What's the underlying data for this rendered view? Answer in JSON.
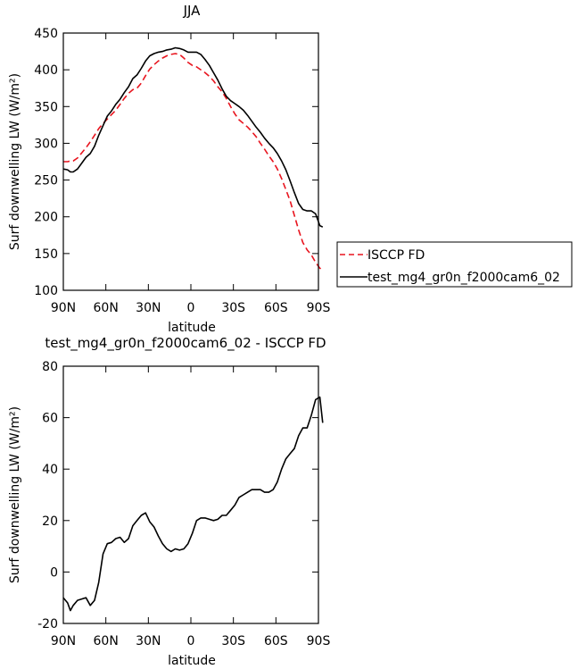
{
  "chart_data": [
    {
      "type": "line",
      "title": "JJA",
      "xlabel": "latitude",
      "ylabel": "Surf downwelling LW (W/m²)",
      "xlim": [
        -90,
        90
      ],
      "ylim": [
        100,
        450
      ],
      "x_tick_values": [
        -90,
        -60,
        -30,
        0,
        30,
        60,
        90
      ],
      "x_tick_labels": [
        "90N",
        "60N",
        "30N",
        "0",
        "30S",
        "60S",
        "90S"
      ],
      "y_ticks": [
        100,
        150,
        200,
        250,
        300,
        350,
        400,
        450
      ],
      "legend": {
        "placement": "right",
        "entries": [
          "ISCCP FD",
          "test_mg4_gr0n_f2000cam6_02"
        ]
      },
      "series": [
        {
          "name": "ISCCP FD",
          "color": "#e8141e",
          "dash": "dashed",
          "points": [
            [
              -90,
              275
            ],
            [
              -87,
              275
            ],
            [
              -85,
              276
            ],
            [
              -83,
              276
            ],
            [
              -80,
              280
            ],
            [
              -77,
              287
            ],
            [
              -74,
              294
            ],
            [
              -71,
              302
            ],
            [
              -68,
              311
            ],
            [
              -65,
              320
            ],
            [
              -62,
              327
            ],
            [
              -59,
              333
            ],
            [
              -56,
              339
            ],
            [
              -53,
              345
            ],
            [
              -50,
              353
            ],
            [
              -47,
              361
            ],
            [
              -44,
              368
            ],
            [
              -41,
              373
            ],
            [
              -38,
              375
            ],
            [
              -35,
              382
            ],
            [
              -32,
              392
            ],
            [
              -29,
              401
            ],
            [
              -26,
              407
            ],
            [
              -23,
              412
            ],
            [
              -20,
              416
            ],
            [
              -17,
              419
            ],
            [
              -14,
              421
            ],
            [
              -11,
              422
            ],
            [
              -8,
              421
            ],
            [
              -5,
              416
            ],
            [
              -2,
              410
            ],
            [
              1,
              406
            ],
            [
              4,
              404
            ],
            [
              7,
              400
            ],
            [
              10,
              396
            ],
            [
              13,
              391
            ],
            [
              16,
              385
            ],
            [
              19,
              377
            ],
            [
              22,
              370
            ],
            [
              25,
              361
            ],
            [
              28,
              350
            ],
            [
              31,
              340
            ],
            [
              34,
              332
            ],
            [
              37,
              327
            ],
            [
              40,
              322
            ],
            [
              43,
              316
            ],
            [
              46,
              309
            ],
            [
              49,
              300
            ],
            [
              52,
              292
            ],
            [
              55,
              283
            ],
            [
              58,
              275
            ],
            [
              61,
              265
            ],
            [
              64,
              252
            ],
            [
              67,
              237
            ],
            [
              70,
              222
            ],
            [
              73,
              202
            ],
            [
              76,
              182
            ],
            [
              79,
              165
            ],
            [
              82,
              155
            ],
            [
              85,
              148
            ],
            [
              88,
              138
            ],
            [
              91,
              130
            ],
            [
              93,
              128
            ]
          ]
        },
        {
          "name": "test_mg4_gr0n_f2000cam6_02",
          "color": "#000000",
          "dash": "solid",
          "points": [
            [
              -90,
              265
            ],
            [
              -87,
              264
            ],
            [
              -85,
              261
            ],
            [
              -83,
              261
            ],
            [
              -80,
              265
            ],
            [
              -77,
              273
            ],
            [
              -74,
              281
            ],
            [
              -71,
              286
            ],
            [
              -68,
              296
            ],
            [
              -65,
              311
            ],
            [
              -62,
              324
            ],
            [
              -59,
              337
            ],
            [
              -56,
              344
            ],
            [
              -53,
              353
            ],
            [
              -50,
              360
            ],
            [
              -47,
              369
            ],
            [
              -44,
              377
            ],
            [
              -41,
              388
            ],
            [
              -38,
              393
            ],
            [
              -35,
              402
            ],
            [
              -32,
              412
            ],
            [
              -29,
              419
            ],
            [
              -26,
              422
            ],
            [
              -23,
              424
            ],
            [
              -20,
              425
            ],
            [
              -17,
              427
            ],
            [
              -14,
              428
            ],
            [
              -11,
              430
            ],
            [
              -8,
              429
            ],
            [
              -5,
              427
            ],
            [
              -2,
              424
            ],
            [
              1,
              424
            ],
            [
              4,
              424
            ],
            [
              7,
              421
            ],
            [
              10,
              414
            ],
            [
              13,
              406
            ],
            [
              16,
              396
            ],
            [
              19,
              386
            ],
            [
              22,
              374
            ],
            [
              25,
              364
            ],
            [
              28,
              358
            ],
            [
              31,
              354
            ],
            [
              34,
              350
            ],
            [
              37,
              345
            ],
            [
              40,
              338
            ],
            [
              43,
              330
            ],
            [
              46,
              322
            ],
            [
              49,
              315
            ],
            [
              52,
              307
            ],
            [
              55,
              300
            ],
            [
              58,
              294
            ],
            [
              61,
              286
            ],
            [
              64,
              276
            ],
            [
              67,
              264
            ],
            [
              70,
              249
            ],
            [
              73,
              233
            ],
            [
              76,
              218
            ],
            [
              79,
              210
            ],
            [
              82,
              208
            ],
            [
              85,
              208
            ],
            [
              88,
              204
            ],
            [
              91,
              188
            ],
            [
              93,
              186
            ]
          ]
        }
      ]
    },
    {
      "type": "line",
      "title": "test_mg4_gr0n_f2000cam6_02 - ISCCP FD",
      "xlabel": "latitude",
      "ylabel": "Surf downwelling LW (W/m²)",
      "xlim": [
        -90,
        90
      ],
      "ylim": [
        -20,
        80
      ],
      "x_tick_values": [
        -90,
        -60,
        -30,
        0,
        30,
        60,
        90
      ],
      "x_tick_labels": [
        "90N",
        "60N",
        "30N",
        "0",
        "30S",
        "60S",
        "90S"
      ],
      "y_ticks": [
        -20,
        0,
        20,
        40,
        60,
        80
      ],
      "series": [
        {
          "color": "#000000",
          "dash": "solid",
          "points": [
            [
              -90,
              -10
            ],
            [
              -87,
              -12
            ],
            [
              -85,
              -15
            ],
            [
              -83,
              -13
            ],
            [
              -80,
              -11
            ],
            [
              -77,
              -10.5
            ],
            [
              -74,
              -10
            ],
            [
              -71,
              -13
            ],
            [
              -68,
              -11
            ],
            [
              -65,
              -4
            ],
            [
              -62,
              7
            ],
            [
              -59,
              11
            ],
            [
              -56,
              11.5
            ],
            [
              -53,
              13
            ],
            [
              -50,
              13.5
            ],
            [
              -47,
              11.5
            ],
            [
              -44,
              13
            ],
            [
              -41,
              18
            ],
            [
              -38,
              20
            ],
            [
              -35,
              22
            ],
            [
              -32,
              23
            ],
            [
              -29,
              19.5
            ],
            [
              -26,
              17.5
            ],
            [
              -23,
              14
            ],
            [
              -20,
              11
            ],
            [
              -17,
              9
            ],
            [
              -14,
              8
            ],
            [
              -11,
              9
            ],
            [
              -8,
              8.5
            ],
            [
              -5,
              9
            ],
            [
              -2,
              11
            ],
            [
              1,
              15
            ],
            [
              4,
              20
            ],
            [
              7,
              21
            ],
            [
              10,
              21
            ],
            [
              13,
              20.5
            ],
            [
              16,
              20
            ],
            [
              19,
              20.5
            ],
            [
              22,
              22
            ],
            [
              25,
              22
            ],
            [
              28,
              24
            ],
            [
              31,
              26
            ],
            [
              34,
              29
            ],
            [
              37,
              30
            ],
            [
              40,
              31
            ],
            [
              43,
              32
            ],
            [
              46,
              32
            ],
            [
              49,
              32
            ],
            [
              52,
              31
            ],
            [
              55,
              31
            ],
            [
              58,
              32
            ],
            [
              61,
              35
            ],
            [
              64,
              40
            ],
            [
              67,
              44
            ],
            [
              70,
              46
            ],
            [
              73,
              48
            ],
            [
              76,
              53
            ],
            [
              79,
              56
            ],
            [
              82,
              56
            ],
            [
              85,
              61
            ],
            [
              88,
              67
            ],
            [
              91,
              68
            ],
            [
              93,
              58
            ]
          ]
        }
      ]
    }
  ]
}
